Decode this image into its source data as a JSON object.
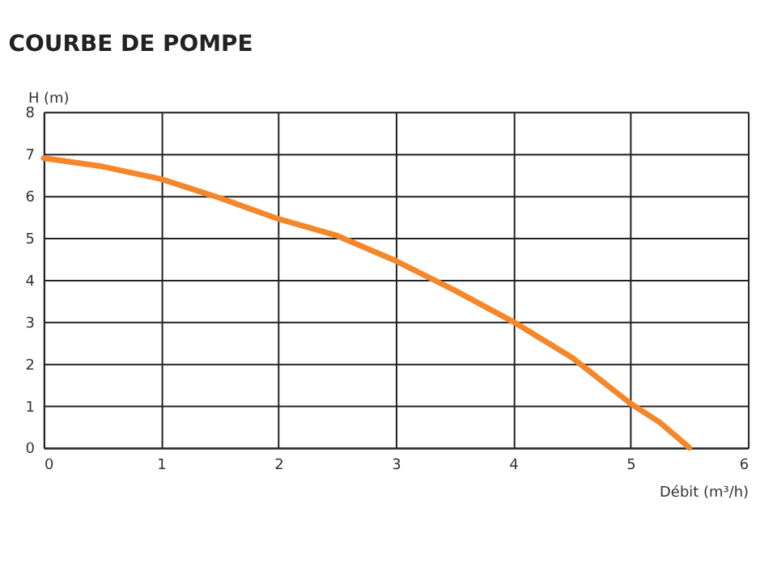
{
  "chart_data": {
    "type": "line",
    "title": "COURBE DE POMPE",
    "xlabel": "Débit (m³/h)",
    "ylabel": "H (m)",
    "x": [
      0,
      0.5,
      1,
      1.5,
      2,
      2.5,
      3,
      3.5,
      4,
      4.5,
      5,
      5.25,
      5.5
    ],
    "series": [
      {
        "color": "#f5862a",
        "values": [
          6.9,
          6.7,
          6.4,
          5.95,
          5.45,
          5.05,
          4.45,
          3.75,
          3.0,
          2.15,
          1.05,
          0.6,
          0
        ]
      }
    ],
    "xlim": [
      0,
      6
    ],
    "ylim": [
      0,
      8
    ],
    "xticks": [
      0,
      1,
      2,
      3,
      4,
      5,
      6
    ],
    "yticks": [
      0,
      1,
      2,
      3,
      4,
      5,
      6,
      7,
      8
    ],
    "grid": true,
    "legend": false,
    "marker": "none",
    "line_style": "solid"
  }
}
